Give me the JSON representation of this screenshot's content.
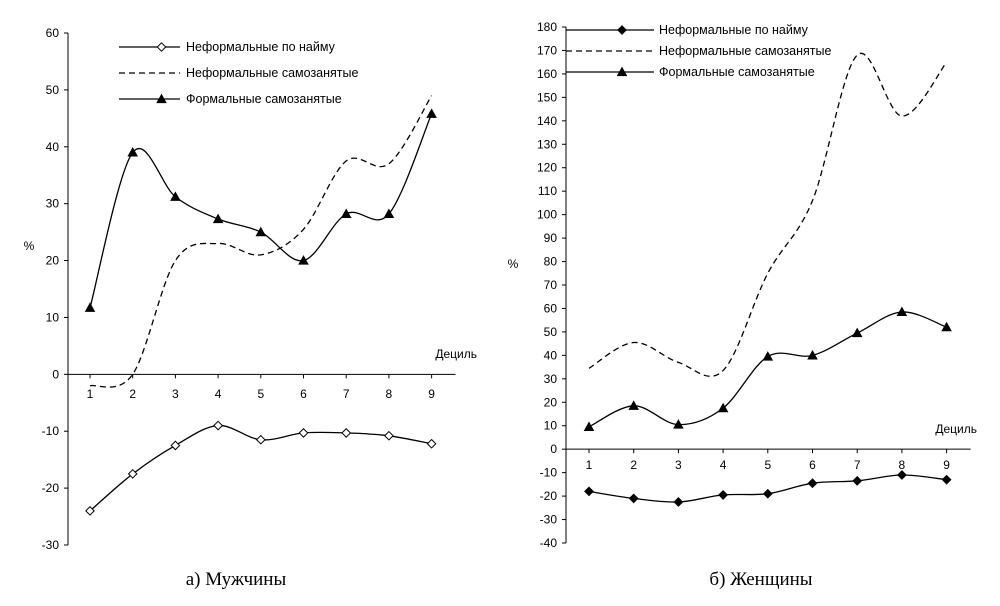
{
  "chart_data": [
    {
      "type": "line",
      "caption": "а) Мужчины",
      "ylabel": "%",
      "xlabel": "Дециль",
      "ylim": [
        -30,
        60
      ],
      "ytick_step": 10,
      "x": [
        1,
        2,
        3,
        4,
        5,
        6,
        7,
        8,
        9
      ],
      "legend_position": "top-left",
      "series": [
        {
          "name": "Неформальные по найму",
          "style": "solid",
          "marker": "diamond-open",
          "values": [
            -24,
            -17.5,
            -12.5,
            -9,
            -11.5,
            -10.3,
            -10.3,
            -10.8,
            -12.2
          ]
        },
        {
          "name": "Неформальные самозанятые",
          "style": "dashed",
          "marker": "none",
          "values": [
            -2,
            0,
            20,
            23,
            21,
            25.5,
            37.5,
            37,
            49
          ]
        },
        {
          "name": "Формальные самозанятые",
          "style": "solid",
          "marker": "triangle-filled",
          "values": [
            11.7,
            39,
            31.2,
            27.3,
            25,
            20,
            28.2,
            28.2,
            45.8
          ]
        }
      ]
    },
    {
      "type": "line",
      "caption": "б) Женщины",
      "ylabel": "%",
      "xlabel": "Дециль",
      "ylim": [
        -40,
        180
      ],
      "ytick_step": 10,
      "x": [
        1,
        2,
        3,
        4,
        5,
        6,
        7,
        8,
        9
      ],
      "legend_position": "top-left",
      "series": [
        {
          "name": "Неформальные по найму",
          "style": "solid",
          "marker": "diamond-filled",
          "values": [
            -18,
            -21,
            -22.5,
            -19.5,
            -19,
            -14.5,
            -13.5,
            -11,
            -13
          ]
        },
        {
          "name": "Неформальные самозанятые",
          "style": "dashed",
          "marker": "none",
          "values": [
            34.5,
            45.5,
            37,
            33.5,
            75,
            106,
            168,
            142,
            165
          ]
        },
        {
          "name": "Формальные самозанятые",
          "style": "solid",
          "marker": "triangle-filled",
          "values": [
            9.5,
            18.5,
            10.5,
            17.5,
            39.5,
            40,
            49.5,
            58.5,
            52
          ]
        }
      ]
    }
  ]
}
